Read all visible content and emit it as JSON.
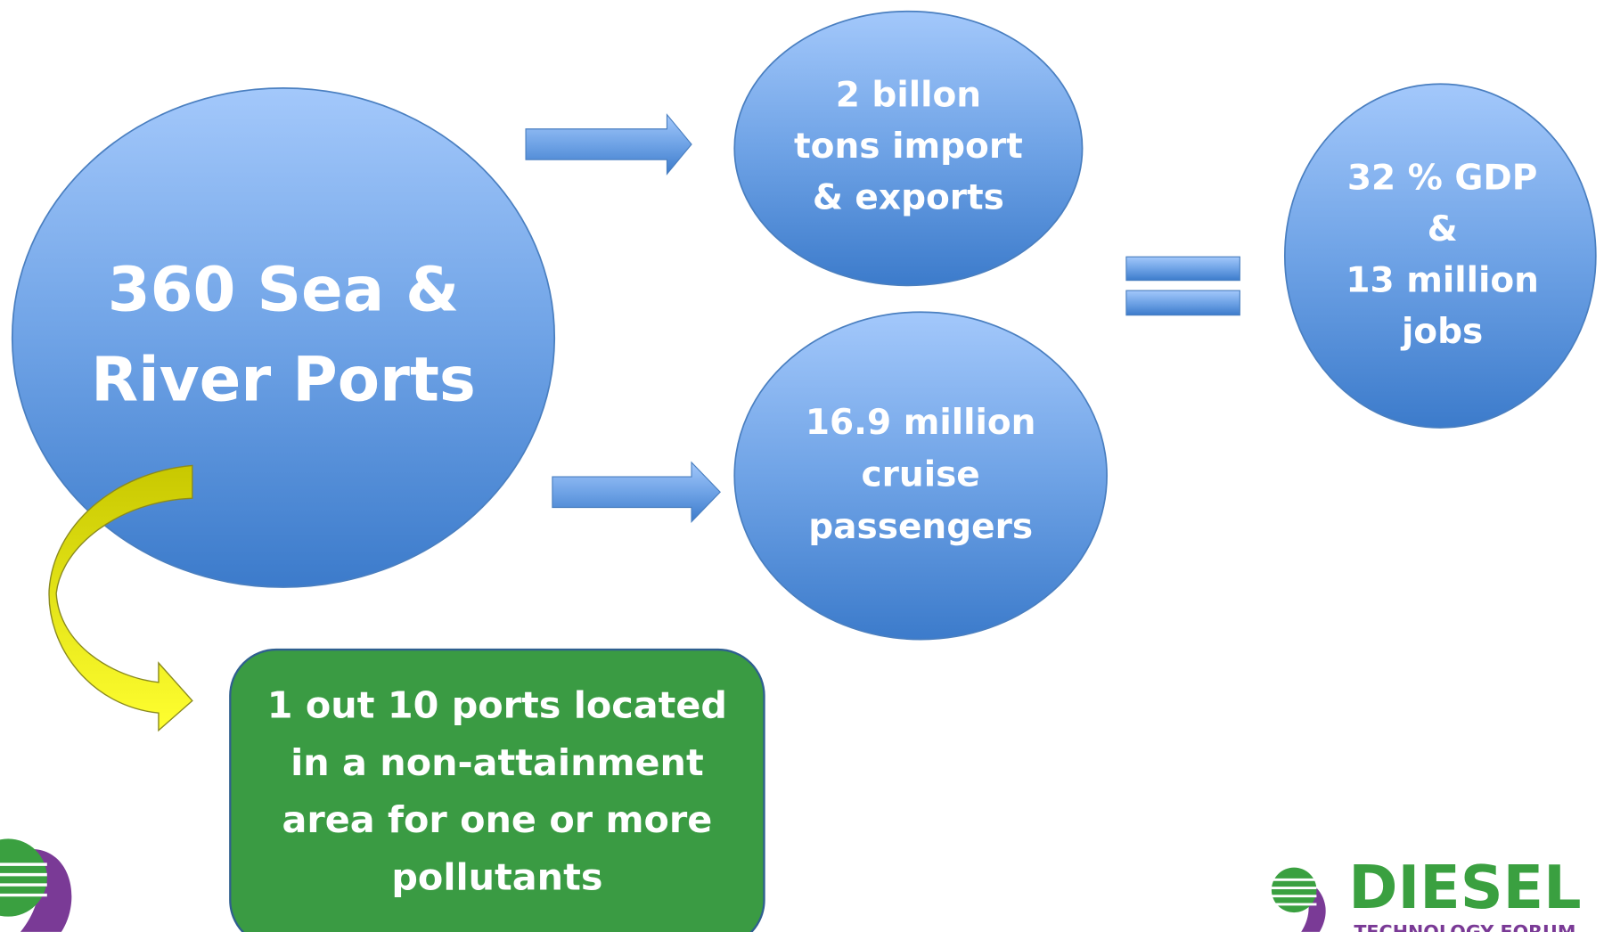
{
  "nodes": [
    {
      "label": [
        "360 Sea &",
        "River Ports"
      ]
    },
    {
      "label": [
        "2 billon",
        "tons import",
        "& exports"
      ]
    },
    {
      "label": [
        "16.9 million",
        "cruise",
        "passengers"
      ]
    },
    {
      "label": [
        "32 % GDP",
        "&",
        "13 million",
        "jobs"
      ]
    },
    {
      "label": [
        "1 out 10 ports located",
        "in a non-attainment",
        "area for one or more",
        "pollutants"
      ]
    }
  ],
  "logo": {
    "name": "DIESEL",
    "subtitle": "TECHNOLOGY FORUM"
  }
}
